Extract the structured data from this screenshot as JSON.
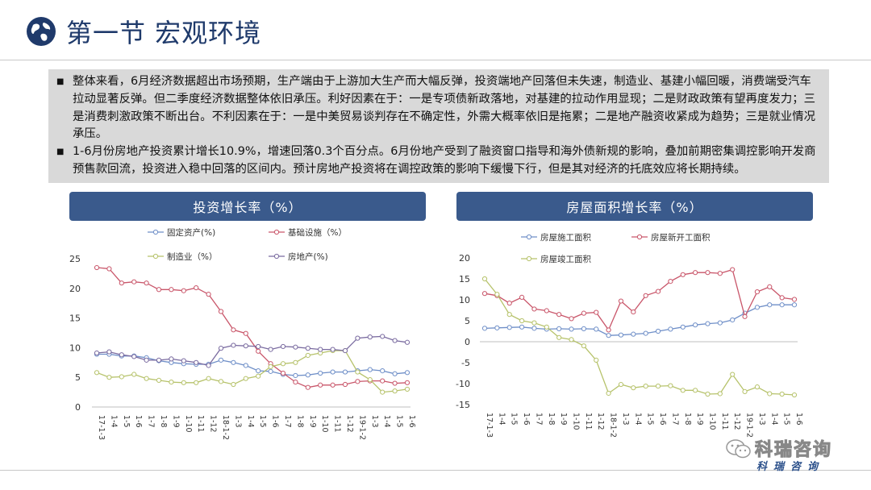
{
  "header": {
    "title": "第一节 宏观环境"
  },
  "summary": {
    "bullets": [
      "整体来看，6月经济数据超出市场预期，生产端由于上游加大生产而大幅反弹，投资端地产回落但未失速，制造业、基建小幅回暖，消费端受汽车拉动显著反弹。但二季度经济数据整体依旧承压。利好因素在于：一是专项债新政落地，对基建的拉动作用显现；二是财政政策有望再度发力；三是消费刺激政策不断出台。不利因素在于：一是中美贸易谈判存在不确定性，外需大概率依旧是拖累；二是地产融资收紧成为趋势；三是就业情况承压。",
      "1-6月份房地产投资累计增长10.9%，增速回落0.3个百分点。6月份地产受到了融资窗口指导和海外债新规的影响，叠加前期密集调控影响开发商预售款回流，投资进入稳中回落的区间内。预计房地产投资将在调控政策的影响下缓慢下行，但是其对经济的托底效应将长期持续。"
    ]
  },
  "watermark": {
    "line1": "科瑞咨询",
    "line2": "科瑞咨询"
  },
  "colors": {
    "blue": "#6f8fc8",
    "red": "#c9566a",
    "green": "#b6c26a",
    "purple": "#7a6ba0",
    "header": "#3a5a8c"
  },
  "chart_data": [
    {
      "type": "line",
      "title": "投资增长率（%）",
      "categories": [
        "17-1-3",
        "1-4",
        "1-5",
        "1-6",
        "1-7",
        "1-8",
        "1-9",
        "1-10",
        "1-11",
        "1-12",
        "18-1-2",
        "1-3",
        "1-4",
        "1-5",
        "1-6",
        "1-7",
        "1-8",
        "1-9",
        "1-10",
        "1-11",
        "1-12",
        "19-1-2",
        "1-3",
        "1-4",
        "1-5",
        "1-6"
      ],
      "ylim": [
        0,
        25
      ],
      "yticks": [
        0,
        5,
        10,
        15,
        20,
        25
      ],
      "series": [
        {
          "name": "固定资产(%)",
          "color": "#6f8fc8",
          "values": [
            8.9,
            8.9,
            8.6,
            8.6,
            8.3,
            7.8,
            7.5,
            7.3,
            7.2,
            7.2,
            7.9,
            7.5,
            7.0,
            6.1,
            6.0,
            5.5,
            5.3,
            5.4,
            5.7,
            5.9,
            5.9,
            6.1,
            6.3,
            6.1,
            5.6,
            5.8
          ]
        },
        {
          "name": "基础设施（%）",
          "color": "#c9566a",
          "values": [
            23.5,
            23.3,
            20.9,
            21.1,
            20.9,
            19.8,
            19.8,
            19.6,
            20.1,
            19.0,
            16.1,
            13.0,
            12.4,
            9.4,
            7.3,
            5.7,
            4.2,
            3.3,
            3.7,
            3.7,
            3.8,
            4.3,
            4.4,
            4.4,
            4.0,
            4.1
          ]
        },
        {
          "name": "制造业（%）",
          "color": "#b6c26a",
          "values": [
            5.8,
            5.0,
            5.1,
            5.5,
            4.8,
            4.5,
            4.2,
            4.1,
            4.1,
            4.8,
            4.3,
            3.8,
            4.8,
            5.2,
            6.8,
            7.3,
            7.5,
            8.7,
            9.1,
            9.5,
            9.5,
            5.9,
            4.6,
            2.5,
            2.7,
            3.0
          ]
        },
        {
          "name": "房地产(%)",
          "color": "#7a6ba0",
          "values": [
            9.1,
            9.3,
            8.8,
            8.5,
            7.9,
            7.9,
            8.1,
            7.8,
            7.5,
            7.0,
            9.9,
            10.4,
            10.3,
            10.2,
            9.7,
            10.2,
            10.1,
            9.9,
            9.7,
            9.7,
            9.5,
            11.6,
            11.8,
            11.9,
            11.2,
            10.9
          ]
        }
      ]
    },
    {
      "type": "line",
      "title": "房屋面积增长率（%）",
      "categories": [
        "17-1-3",
        "1-4",
        "1-5",
        "1-6",
        "1-7",
        "1-8",
        "1-9",
        "1-10",
        "1-11",
        "1-12",
        "18-1-2",
        "1-3",
        "1-4",
        "1-5",
        "1-6",
        "1-7",
        "1-8",
        "1-9",
        "1-10",
        "1-11",
        "1-12",
        "19-1-2",
        "1-3",
        "1-4",
        "1-5",
        "1-6"
      ],
      "ylim": [
        -15,
        20
      ],
      "yticks": [
        20,
        15,
        10,
        5,
        0,
        -5,
        -10,
        -15
      ],
      "series": [
        {
          "name": "房屋施工面积",
          "color": "#6f8fc8",
          "values": [
            3.2,
            3.3,
            3.4,
            3.5,
            3.2,
            3.0,
            3.1,
            3.0,
            3.1,
            3.0,
            1.5,
            1.6,
            1.8,
            2.0,
            2.5,
            3.0,
            3.5,
            4.0,
            4.3,
            4.5,
            5.2,
            6.8,
            8.2,
            8.8,
            8.8,
            8.8
          ]
        },
        {
          "name": "房屋新开工面积",
          "color": "#c9566a",
          "values": [
            11.5,
            11.0,
            9.2,
            10.6,
            7.8,
            7.4,
            6.5,
            5.5,
            6.8,
            7.0,
            2.8,
            9.7,
            7.1,
            11.0,
            12.0,
            14.4,
            16.0,
            16.5,
            16.5,
            16.3,
            17.2,
            6.0,
            11.9,
            13.1,
            10.5,
            10.1
          ]
        },
        {
          "name": "房屋竣工面积",
          "color": "#b6c26a",
          "values": [
            15.0,
            11.3,
            6.5,
            5.0,
            4.5,
            3.5,
            1.0,
            0.5,
            -1.0,
            -4.4,
            -12.3,
            -10.2,
            -11.0,
            -10.6,
            -10.6,
            -10.5,
            -11.6,
            -11.6,
            -12.5,
            -12.4,
            -7.8,
            -11.9,
            -10.8,
            -12.4,
            -12.5,
            -12.7
          ]
        }
      ]
    }
  ]
}
